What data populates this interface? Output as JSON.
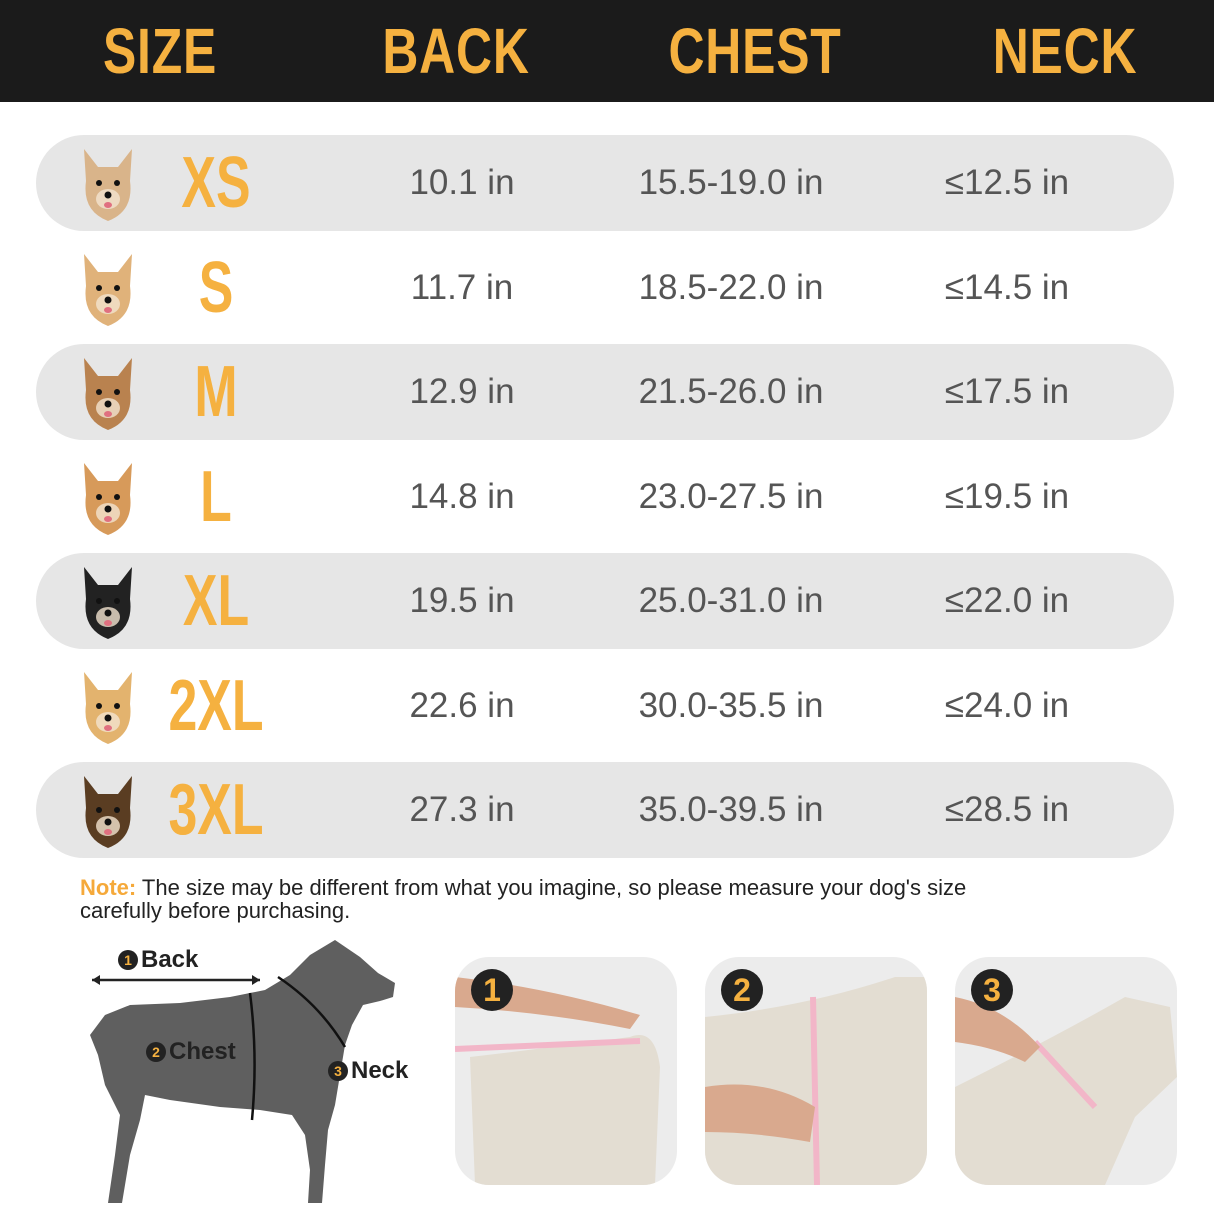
{
  "header": {
    "columns": [
      "SIZE",
      "BACK",
      "CHEST",
      "NECK"
    ]
  },
  "colors": {
    "accent": "#f5b140",
    "header_bg": "#1b1b1b",
    "band": "#e6e6e6"
  },
  "rows": [
    {
      "size": "XS",
      "back": "10.1 in",
      "chest": "15.5-19.0 in",
      "neck": "≤12.5 in",
      "dog": "chihuahua"
    },
    {
      "size": "S",
      "back": "11.7 in",
      "chest": "18.5-22.0 in",
      "neck": "≤14.5 in",
      "dog": "cavapoo"
    },
    {
      "size": "M",
      "back": "12.9 in",
      "chest": "21.5-26.0 in",
      "neck": "≤17.5 in",
      "dog": "poodle"
    },
    {
      "size": "L",
      "back": "14.8 in",
      "chest": "23.0-27.5 in",
      "neck": "≤19.5 in",
      "dog": "corgi"
    },
    {
      "size": "XL",
      "back": "19.5 in",
      "chest": "25.0-31.0 in",
      "neck": "≤22.0 in",
      "dog": "border-collie"
    },
    {
      "size": "2XL",
      "back": "22.6 in",
      "chest": "30.0-35.5 in",
      "neck": "≤24.0 in",
      "dog": "golden-retriever"
    },
    {
      "size": "3XL",
      "back": "27.3 in",
      "chest": "35.0-39.5 in",
      "neck": "≤28.5 in",
      "dog": "german-shepherd"
    }
  ],
  "note": {
    "label": "Note:",
    "text": " The size may be different from what you imagine, so please measure your dog's size carefully before purchasing."
  },
  "diagram": {
    "back": "Back",
    "chest": "Chest",
    "neck": "Neck",
    "n1": "1",
    "n2": "2",
    "n3": "3"
  },
  "steps": [
    "1",
    "2",
    "3"
  ]
}
